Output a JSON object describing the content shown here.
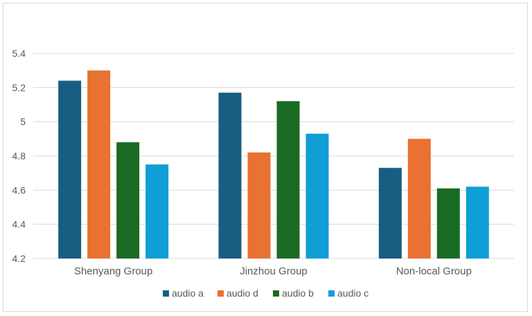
{
  "chart_data": {
    "type": "bar",
    "categories": [
      "Shenyang Group",
      "Jinzhou Group",
      "Non-local Group"
    ],
    "series": [
      {
        "name": "audio a",
        "color": "#175e82",
        "values": [
          5.24,
          5.17,
          4.73
        ]
      },
      {
        "name": "audio d",
        "color": "#e97132",
        "values": [
          5.3,
          4.82,
          4.9
        ]
      },
      {
        "name": "audio b",
        "color": "#196b24",
        "values": [
          4.88,
          5.12,
          4.61
        ]
      },
      {
        "name": "audio c",
        "color": "#0f9ed5",
        "values": [
          4.75,
          4.93,
          4.62
        ]
      }
    ],
    "ylim": [
      4.2,
      5.4
    ],
    "yticks": [
      4.2,
      4.4,
      4.6,
      4.8,
      5,
      5.2,
      5.4
    ],
    "ytick_labels": [
      "4.2",
      "4.4",
      "4.6",
      "4.8",
      "5",
      "5.2",
      "5.4"
    ],
    "title": "",
    "xlabel": "",
    "ylabel": "",
    "grid": true,
    "legend_position": "bottom"
  }
}
